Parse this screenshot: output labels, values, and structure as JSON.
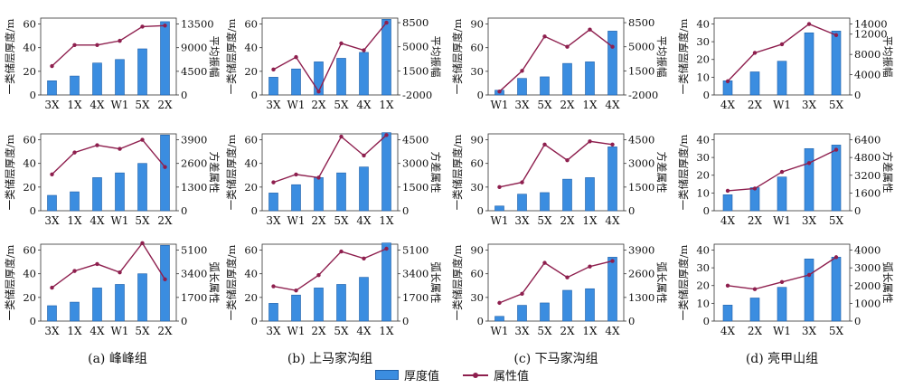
{
  "captions": [
    "(a) 峰峰组",
    "(b) 上马家沟组",
    "(c) 下马家沟组",
    "(d) 亮甲山组"
  ],
  "legend": {
    "bar_label": "厚度值",
    "line_label": "属性值"
  },
  "colors": {
    "bar": "#3b8de0",
    "bar_edge": "#1f5fa8",
    "line": "#8e1f4e"
  },
  "chart_data": [
    {
      "type": "bar-line",
      "col": 0,
      "row": 0,
      "categories": [
        "3X",
        "1X",
        "4X",
        "W1",
        "5X",
        "2X"
      ],
      "bar_values": [
        12,
        16,
        27,
        30,
        39,
        62
      ],
      "line_values": [
        5500,
        9500,
        9500,
        10300,
        13000,
        13200
      ],
      "ylabel_left": "一类储层厚度/m",
      "ylabel_right": "平均振幅",
      "yticks_left": [
        0,
        20,
        40,
        60
      ],
      "ylim_left": [
        0,
        65
      ],
      "yticks_right": [
        0,
        4500,
        9000,
        13500
      ],
      "ylim_right": [
        0,
        14625
      ]
    },
    {
      "type": "bar-line",
      "col": 1,
      "row": 0,
      "categories": [
        "3X",
        "W1",
        "2X",
        "5X",
        "4X",
        "1X"
      ],
      "bar_values": [
        15,
        22,
        28,
        31,
        36,
        64
      ],
      "line_values": [
        1700,
        3500,
        -1500,
        5500,
        4500,
        8500
      ],
      "ylabel_left": "一类储层厚度/m",
      "ylabel_right": "平均振幅",
      "yticks_left": [
        0,
        20,
        40,
        60
      ],
      "ylim_left": [
        0,
        65
      ],
      "yticks_right": [
        -2000,
        1500,
        5000,
        8500
      ],
      "ylim_right": [
        -2000,
        9167
      ]
    },
    {
      "type": "bar-line",
      "col": 2,
      "row": 0,
      "categories": [
        "W1",
        "3X",
        "5X",
        "2X",
        "1X",
        "4X"
      ],
      "bar_values": [
        6,
        21,
        23,
        40,
        42,
        81
      ],
      "line_values": [
        -1500,
        1500,
        6500,
        5000,
        7500,
        5000
      ],
      "ylabel_left": "一类储层厚度/m",
      "ylabel_right": "平均振幅",
      "yticks_left": [
        0,
        30,
        60,
        90
      ],
      "ylim_left": [
        0,
        97.5
      ],
      "yticks_right": [
        -2000,
        1500,
        5000,
        8500
      ],
      "ylim_right": [
        -2000,
        9167
      ]
    },
    {
      "type": "bar-line",
      "col": 3,
      "row": 0,
      "categories": [
        "4X",
        "2X",
        "W1",
        "3X",
        "5X"
      ],
      "bar_values": [
        8,
        13,
        19,
        35,
        36
      ],
      "line_values": [
        2700,
        8300,
        10000,
        14000,
        11800
      ],
      "ylabel_left": "一类储层厚度/m",
      "ylabel_right": "平均振幅",
      "yticks_left": [
        0,
        10,
        20,
        30,
        40
      ],
      "ylim_left": [
        0,
        43.3
      ],
      "yticks_right": [
        0,
        4000,
        8000,
        12000,
        14000
      ],
      "ylim_right": [
        0,
        15167
      ]
    },
    {
      "type": "bar-line",
      "col": 0,
      "row": 1,
      "categories": [
        "3X",
        "1X",
        "4X",
        "W1",
        "5X",
        "2X"
      ],
      "bar_values": [
        13,
        16,
        28,
        32,
        40,
        64
      ],
      "line_values": [
        2000,
        3200,
        3600,
        3400,
        3900,
        2400
      ],
      "ylabel_left": "一类储层厚度/m",
      "ylabel_right": "方差属性",
      "yticks_left": [
        0,
        20,
        40,
        60
      ],
      "ylim_left": [
        0,
        65
      ],
      "yticks_right": [
        0,
        1300,
        2600,
        3900
      ],
      "ylim_right": [
        0,
        4225
      ]
    },
    {
      "type": "bar-line",
      "col": 1,
      "row": 1,
      "categories": [
        "3X",
        "W1",
        "2X",
        "5X",
        "4X",
        "1X"
      ],
      "bar_values": [
        15,
        22,
        28,
        32,
        37,
        66
      ],
      "line_values": [
        1800,
        2300,
        2100,
        4700,
        3500,
        4800
      ],
      "ylabel_left": "一类储层厚度/m",
      "ylabel_right": "方差属性",
      "yticks_left": [
        0,
        20,
        40,
        60
      ],
      "ylim_left": [
        0,
        65
      ],
      "yticks_right": [
        0,
        1500,
        3000,
        4500
      ],
      "ylim_right": [
        0,
        4875
      ]
    },
    {
      "type": "bar-line",
      "col": 2,
      "row": 1,
      "categories": [
        "W1",
        "3X",
        "5X",
        "2X",
        "1X",
        "4X"
      ],
      "bar_values": [
        6,
        21,
        23,
        40,
        42,
        81
      ],
      "line_values": [
        1500,
        1800,
        4200,
        3200,
        4400,
        4200
      ],
      "ylabel_left": "一类储层厚度/m",
      "ylabel_right": "方差属性",
      "yticks_left": [
        0,
        30,
        60,
        90
      ],
      "ylim_left": [
        0,
        97.5
      ],
      "yticks_right": [
        0,
        1500,
        3000,
        4500
      ],
      "ylim_right": [
        0,
        4875
      ]
    },
    {
      "type": "bar-line",
      "col": 3,
      "row": 1,
      "categories": [
        "4X",
        "2X",
        "W1",
        "3X",
        "5X"
      ],
      "bar_values": [
        9,
        13,
        19,
        35,
        37
      ],
      "line_values": [
        1800,
        2000,
        3500,
        4300,
        5500
      ],
      "ylabel_left": "一类储层厚度/m",
      "ylabel_right": "方差属性",
      "yticks_left": [
        0,
        10,
        20,
        30,
        40
      ],
      "ylim_left": [
        0,
        43.3
      ],
      "yticks_right": [
        0,
        1600,
        3200,
        4800,
        6400
      ],
      "ylim_right": [
        0,
        6933
      ]
    },
    {
      "type": "bar-line",
      "col": 0,
      "row": 2,
      "categories": [
        "3X",
        "1X",
        "4X",
        "W1",
        "5X",
        "2X"
      ],
      "bar_values": [
        13,
        16,
        28,
        31,
        40,
        64
      ],
      "line_values": [
        2400,
        3600,
        4100,
        3500,
        5600,
        3000
      ],
      "ylabel_left": "一类储层厚度/m",
      "ylabel_right": "弧长属性",
      "yticks_left": [
        0,
        20,
        40,
        60
      ],
      "ylim_left": [
        0,
        65
      ],
      "yticks_right": [
        0,
        1700,
        3400,
        5100
      ],
      "ylim_right": [
        0,
        5525
      ]
    },
    {
      "type": "bar-line",
      "col": 1,
      "row": 2,
      "categories": [
        "3X",
        "W1",
        "2X",
        "5X",
        "4X",
        "1X"
      ],
      "bar_values": [
        15,
        22,
        28,
        31,
        37,
        66
      ],
      "line_values": [
        2500,
        2200,
        3300,
        5000,
        4500,
        5200
      ],
      "ylabel_left": "一类储层厚度/m",
      "ylabel_right": "弧长属性",
      "yticks_left": [
        0,
        20,
        40,
        60
      ],
      "ylim_left": [
        0,
        65
      ],
      "yticks_right": [
        0,
        1700,
        3400,
        5100
      ],
      "ylim_right": [
        0,
        5525
      ]
    },
    {
      "type": "bar-line",
      "col": 2,
      "row": 2,
      "categories": [
        "W1",
        "3X",
        "5X",
        "2X",
        "1X",
        "4X"
      ],
      "bar_values": [
        6,
        20,
        23,
        39,
        41,
        81
      ],
      "line_values": [
        1000,
        1500,
        3200,
        2400,
        3000,
        3300
      ],
      "ylabel_left": "一类储层厚度/m",
      "ylabel_right": "弧长属性",
      "yticks_left": [
        0,
        30,
        60,
        90
      ],
      "ylim_left": [
        0,
        97.5
      ],
      "yticks_right": [
        0,
        1300,
        2600,
        3900
      ],
      "ylim_right": [
        0,
        4225
      ]
    },
    {
      "type": "bar-line",
      "col": 3,
      "row": 2,
      "categories": [
        "4X",
        "2X",
        "W1",
        "3X",
        "5X"
      ],
      "bar_values": [
        9,
        13,
        19,
        35,
        36
      ],
      "line_values": [
        2000,
        1800,
        2200,
        2600,
        3600
      ],
      "ylabel_left": "一类储层厚度/m",
      "ylabel_right": "弧长属性",
      "yticks_left": [
        0,
        10,
        20,
        30,
        40
      ],
      "ylim_left": [
        0,
        43.3
      ],
      "yticks_right": [
        0,
        1000,
        2000,
        3000,
        4000
      ],
      "ylim_right": [
        0,
        4333
      ]
    }
  ]
}
